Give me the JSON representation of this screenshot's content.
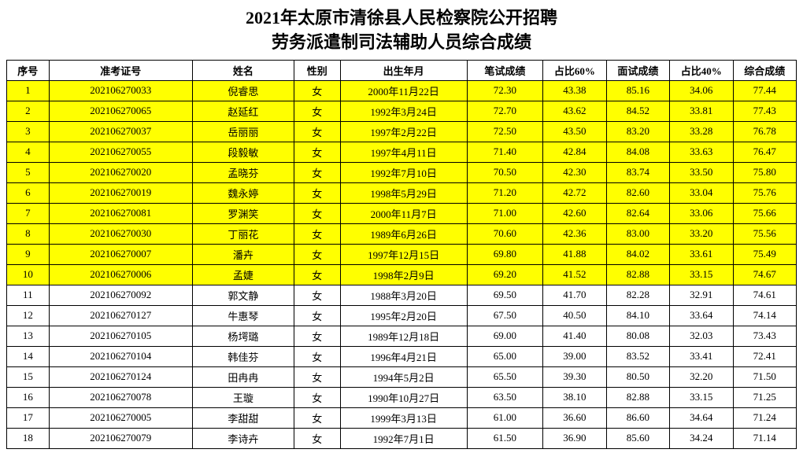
{
  "title_line1": "2021年太原市清徐县人民检察院公开招聘",
  "title_line2": "劳务派遣制司法辅助人员综合成绩",
  "columns": [
    "序号",
    "准考证号",
    "姓名",
    "性别",
    "出生年月",
    "笔试成绩",
    "占比60%",
    "面试成绩",
    "占比40%",
    "综合成绩"
  ],
  "highlight_color": "#ffff00",
  "rows": [
    {
      "hl": true,
      "c": [
        "1",
        "202106270033",
        "倪睿思",
        "女",
        "2000年11月22日",
        "72.30",
        "43.38",
        "85.16",
        "34.06",
        "77.44"
      ]
    },
    {
      "hl": true,
      "c": [
        "2",
        "202106270065",
        "赵延红",
        "女",
        "1992年3月24日",
        "72.70",
        "43.62",
        "84.52",
        "33.81",
        "77.43"
      ]
    },
    {
      "hl": true,
      "c": [
        "3",
        "202106270037",
        "岳丽丽",
        "女",
        "1997年2月22日",
        "72.50",
        "43.50",
        "83.20",
        "33.28",
        "76.78"
      ]
    },
    {
      "hl": true,
      "c": [
        "4",
        "202106270055",
        "段毅敏",
        "女",
        "1997年4月11日",
        "71.40",
        "42.84",
        "84.08",
        "33.63",
        "76.47"
      ]
    },
    {
      "hl": true,
      "c": [
        "5",
        "202106270020",
        "孟晓芬",
        "女",
        "1992年7月10日",
        "70.50",
        "42.30",
        "83.74",
        "33.50",
        "75.80"
      ]
    },
    {
      "hl": true,
      "c": [
        "6",
        "202106270019",
        "魏永婷",
        "女",
        "1998年5月29日",
        "71.20",
        "42.72",
        "82.60",
        "33.04",
        "75.76"
      ]
    },
    {
      "hl": true,
      "c": [
        "7",
        "202106270081",
        "罗渊笑",
        "女",
        "2000年11月7日",
        "71.00",
        "42.60",
        "82.64",
        "33.06",
        "75.66"
      ]
    },
    {
      "hl": true,
      "c": [
        "8",
        "202106270030",
        "丁丽花",
        "女",
        "1989年6月26日",
        "70.60",
        "42.36",
        "83.00",
        "33.20",
        "75.56"
      ]
    },
    {
      "hl": true,
      "c": [
        "9",
        "202106270007",
        "潘卉",
        "女",
        "1997年12月15日",
        "69.80",
        "41.88",
        "84.02",
        "33.61",
        "75.49"
      ]
    },
    {
      "hl": true,
      "c": [
        "10",
        "202106270006",
        "孟婕",
        "女",
        "1998年2月9日",
        "69.20",
        "41.52",
        "82.88",
        "33.15",
        "74.67"
      ]
    },
    {
      "hl": false,
      "c": [
        "11",
        "202106270092",
        "郭文静",
        "女",
        "1988年3月20日",
        "69.50",
        "41.70",
        "82.28",
        "32.91",
        "74.61"
      ]
    },
    {
      "hl": false,
      "c": [
        "12",
        "202106270127",
        "牛惠琴",
        "女",
        "1995年2月20日",
        "67.50",
        "40.50",
        "84.10",
        "33.64",
        "74.14"
      ]
    },
    {
      "hl": false,
      "c": [
        "13",
        "202106270105",
        "杨堮璐",
        "女",
        "1989年12月18日",
        "69.00",
        "41.40",
        "80.08",
        "32.03",
        "73.43"
      ]
    },
    {
      "hl": false,
      "c": [
        "14",
        "202106270104",
        "韩佳芬",
        "女",
        "1996年4月21日",
        "65.00",
        "39.00",
        "83.52",
        "33.41",
        "72.41"
      ]
    },
    {
      "hl": false,
      "c": [
        "15",
        "202106270124",
        "田冉冉",
        "女",
        "1994年5月2日",
        "65.50",
        "39.30",
        "80.50",
        "32.20",
        "71.50"
      ]
    },
    {
      "hl": false,
      "c": [
        "16",
        "202106270078",
        "王璇",
        "女",
        "1990年10月27日",
        "63.50",
        "38.10",
        "82.88",
        "33.15",
        "71.25"
      ]
    },
    {
      "hl": false,
      "c": [
        "17",
        "202106270005",
        "李甜甜",
        "女",
        "1999年3月13日",
        "61.00",
        "36.60",
        "86.60",
        "34.64",
        "71.24"
      ]
    },
    {
      "hl": false,
      "c": [
        "18",
        "202106270079",
        "李诗卉",
        "女",
        "1992年7月1日",
        "61.50",
        "36.90",
        "85.60",
        "34.24",
        "71.14"
      ]
    }
  ]
}
